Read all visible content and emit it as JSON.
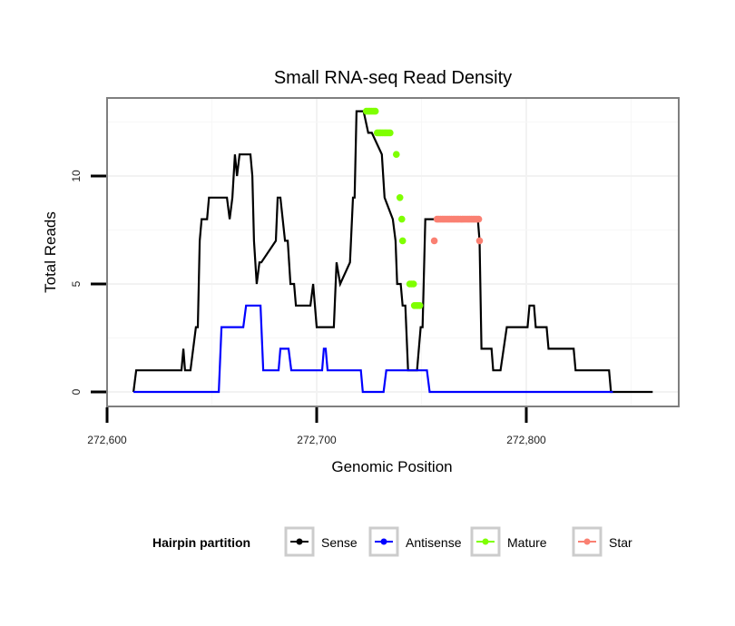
{
  "chart_data": {
    "type": "line",
    "title": "Small RNA-seq Read Density",
    "xlabel": "Genomic Position",
    "ylabel": "Total Reads",
    "xlim": [
      272600,
      272873
    ],
    "ylim": [
      -0.6,
      13.7
    ],
    "x_ticks": [
      272600,
      272700,
      272800
    ],
    "x_tick_labels": [
      "272,600",
      "272,700",
      "272,800"
    ],
    "y_ticks": [
      0,
      5,
      10
    ],
    "y_tick_labels": [
      "0",
      "5",
      "10"
    ],
    "grid": true,
    "legend": {
      "title": "Hairpin partition",
      "position": "bottom",
      "entries": [
        "Sense",
        "Antisense",
        "Mature",
        "Star"
      ]
    },
    "colors": {
      "Sense": "#000000",
      "Antisense": "#0000ff",
      "Mature": "#7fff00",
      "Star": "#fa8072"
    },
    "series": [
      {
        "name": "Sense",
        "style": "line",
        "x": [
          272612.6,
          272613.9,
          272635.5,
          272636.4,
          272637.2,
          272639.8,
          272642.4,
          272643.3,
          272644.2,
          272645.1,
          272647.7,
          272648.6,
          272657.2,
          272658.5,
          272659.8,
          272661.0,
          272662.0,
          272663.2,
          272668.4,
          272669.3,
          272670.1,
          272671.4,
          272672.7,
          272673.6,
          272680.5,
          272681.4,
          272682.7,
          272684.9,
          272686.2,
          272687.5,
          272689.2,
          272690.1,
          272697.0,
          272698.3,
          272700.0,
          272708.2,
          272709.5,
          272711.2,
          272715.9,
          272717.3,
          272718.1,
          272719.0,
          272719.9,
          272721.6,
          272722.4,
          272724.6,
          272726.3,
          272731.1,
          272732.4,
          272736.3,
          272737.6,
          272738.4,
          272740.1,
          272741.0,
          272742.3,
          272743.6,
          272747.9,
          272749.6,
          272750.5,
          272751.8,
          272755.7,
          272756.5,
          272757.8,
          272776.9,
          272777.7,
          272778.6,
          272783.4,
          272784.2,
          272787.7,
          272790.7,
          272791.6,
          272800.6,
          272801.5,
          272803.7,
          272804.5,
          272809.7,
          272810.6,
          272822.6,
          272823.5,
          272839.5,
          272840.4,
          272860.3
        ],
        "y": [
          0,
          1,
          1,
          2,
          1,
          1,
          3,
          3,
          7,
          8,
          8,
          9,
          9,
          8,
          9,
          11,
          10,
          11,
          11,
          10,
          7,
          5,
          6,
          6,
          7,
          9,
          9,
          7,
          7,
          5,
          5,
          4,
          4,
          5,
          3,
          3,
          6,
          5,
          6,
          9,
          9,
          13,
          13,
          13,
          13,
          12,
          12,
          11,
          9,
          8,
          7,
          5,
          5,
          4,
          4,
          1,
          1,
          3,
          3,
          8,
          8,
          8,
          8,
          8,
          7,
          2,
          2,
          1,
          1,
          3,
          3,
          3,
          4,
          4,
          3,
          3,
          2,
          2,
          1,
          1,
          0,
          0
        ]
      },
      {
        "name": "Antisense",
        "style": "line",
        "x": [
          272612.6,
          272653.3,
          272654.6,
          272665.0,
          272666.3,
          272673.2,
          272674.5,
          272681.8,
          272682.7,
          272686.6,
          272687.9,
          272702.6,
          272703.4,
          272704.3,
          272705.2,
          272721.1,
          272722.0,
          272731.9,
          272733.2,
          272752.6,
          272753.9,
          272841.3
        ],
        "y": [
          0,
          0,
          3,
          3,
          4,
          4,
          1,
          1,
          2,
          2,
          1,
          1,
          2,
          2,
          1,
          1,
          0,
          0,
          1,
          1,
          0,
          0
        ]
      },
      {
        "name": "Mature",
        "style": "points",
        "x": [
          272723.7,
          272724.6,
          272725.4,
          272726.3,
          272727.2,
          272728.0,
          272728.9,
          272729.8,
          272730.6,
          272731.5,
          272732.4,
          272733.2,
          272734.1,
          272735.0,
          272738.0,
          272739.7,
          272740.6,
          272741.0,
          272744.4,
          272745.3,
          272746.2,
          272746.6,
          272747.5,
          272748.3,
          272749.2
        ],
        "y": [
          13,
          13,
          13,
          13,
          13,
          13,
          12,
          12,
          12,
          12,
          12,
          12,
          12,
          12,
          11,
          9,
          8,
          7,
          5,
          5,
          5,
          4,
          4,
          4,
          4
        ]
      },
      {
        "name": "Star",
        "style": "points",
        "x": [
          272756.1,
          272757.4,
          272758.2,
          272759.1,
          272760.0,
          272760.8,
          272761.7,
          272762.6,
          272763.4,
          272764.3,
          272765.2,
          272766.0,
          272766.9,
          272767.7,
          272768.6,
          272769.5,
          272770.3,
          272771.2,
          272772.1,
          272772.9,
          272773.8,
          272774.7,
          272775.5,
          272776.4,
          272777.3,
          272777.7
        ],
        "y": [
          7,
          8,
          8,
          8,
          8,
          8,
          8,
          8,
          8,
          8,
          8,
          8,
          8,
          8,
          8,
          8,
          8,
          8,
          8,
          8,
          8,
          8,
          8,
          8,
          8,
          7
        ]
      }
    ]
  }
}
